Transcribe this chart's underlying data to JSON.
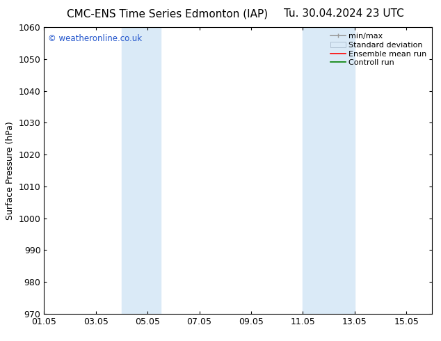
{
  "title_left": "CMC-ENS Time Series Edmonton (IAP)",
  "title_right": "Tu. 30.04.2024 23 UTC",
  "xlabel": "",
  "ylabel": "Surface Pressure (hPa)",
  "ylim": [
    970,
    1060
  ],
  "yticks": [
    970,
    980,
    990,
    1000,
    1010,
    1020,
    1030,
    1040,
    1050,
    1060
  ],
  "xlim_start": 1.05,
  "xlim_end": 16.05,
  "xtick_labels": [
    "01.05",
    "03.05",
    "05.05",
    "07.05",
    "09.05",
    "11.05",
    "13.05",
    "15.05"
  ],
  "xtick_positions": [
    1.05,
    3.05,
    5.05,
    7.05,
    9.05,
    11.05,
    13.05,
    15.05
  ],
  "shaded_bands": [
    {
      "xmin": 4.05,
      "xmax": 4.55,
      "color": "#daeaf7"
    },
    {
      "xmin": 4.55,
      "xmax": 5.55,
      "color": "#daeaf7"
    },
    {
      "xmin": 11.05,
      "xmax": 11.8,
      "color": "#daeaf7"
    },
    {
      "xmin": 11.8,
      "xmax": 13.05,
      "color": "#daeaf7"
    }
  ],
  "watermark_text": "© weatheronline.co.uk",
  "watermark_color": "#2255cc",
  "legend_items": [
    {
      "label": "min/max"
    },
    {
      "label": "Standard deviation"
    },
    {
      "label": "Ensemble mean run"
    },
    {
      "label": "Controll run"
    }
  ],
  "background_color": "#ffffff",
  "title_fontsize": 11,
  "axis_label_fontsize": 9,
  "tick_fontsize": 9,
  "legend_fontsize": 8
}
